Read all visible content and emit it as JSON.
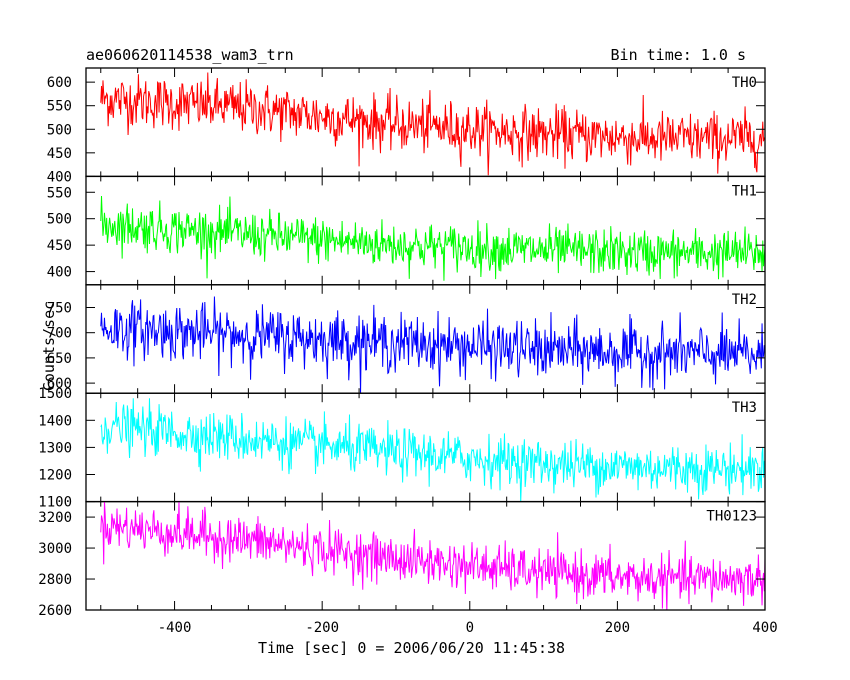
{
  "header": {
    "title": "ae060620114538_wam3_trn",
    "bin_time": "Bin time: 1.0 s"
  },
  "chart_data": {
    "type": "line",
    "title": "ae060620114538_wam3_trn",
    "xlabel": "Time [sec] 0 = 2006/06/20 11:45:38",
    "ylabel": "Counts/sec",
    "xlim": [
      -520,
      400
    ],
    "x_ticks": [
      -400,
      -200,
      0,
      200,
      400
    ],
    "x_range_data": [
      -500,
      400
    ],
    "bin_size": 1.0,
    "panels": [
      {
        "name": "TH0",
        "color": "#ff0000",
        "ylim": [
          400,
          630
        ],
        "y_ticks": [
          400,
          450,
          500,
          550,
          600
        ],
        "trend": [
          [
            -500,
            565
          ],
          [
            -300,
            545
          ],
          [
            -100,
            510
          ],
          [
            100,
            490
          ],
          [
            250,
            480
          ],
          [
            400,
            480
          ]
        ],
        "noise": 28
      },
      {
        "name": "TH1",
        "color": "#00ff00",
        "ylim": [
          375,
          580
        ],
        "y_ticks": [
          400,
          450,
          500,
          550
        ],
        "trend": [
          [
            -500,
            490
          ],
          [
            -300,
            470
          ],
          [
            -100,
            450
          ],
          [
            100,
            440
          ],
          [
            250,
            435
          ],
          [
            400,
            435
          ]
        ],
        "noise": 22
      },
      {
        "name": "TH2",
        "color": "#0000ff",
        "ylim": [
          580,
          795
        ],
        "y_ticks": [
          600,
          650,
          700,
          750
        ],
        "trend": [
          [
            -500,
            710
          ],
          [
            -300,
            695
          ],
          [
            -100,
            680
          ],
          [
            100,
            665
          ],
          [
            250,
            660
          ],
          [
            400,
            655
          ]
        ],
        "noise": 28
      },
      {
        "name": "TH3",
        "color": "#00ffff",
        "ylim": [
          1100,
          1500
        ],
        "y_ticks": [
          1100,
          1200,
          1300,
          1400,
          1500
        ],
        "trend": [
          [
            -500,
            1380
          ],
          [
            -300,
            1330
          ],
          [
            -100,
            1280
          ],
          [
            100,
            1240
          ],
          [
            250,
            1225
          ],
          [
            400,
            1220
          ]
        ],
        "noise": 45
      },
      {
        "name": "TH0123",
        "color": "#ff00ff",
        "ylim": [
          2600,
          3300
        ],
        "y_ticks": [
          2600,
          2800,
          3000,
          3200
        ],
        "trend": [
          [
            -500,
            3150
          ],
          [
            -300,
            3050
          ],
          [
            -100,
            2930
          ],
          [
            100,
            2840
          ],
          [
            250,
            2800
          ],
          [
            400,
            2800
          ]
        ],
        "noise": 75
      }
    ]
  }
}
